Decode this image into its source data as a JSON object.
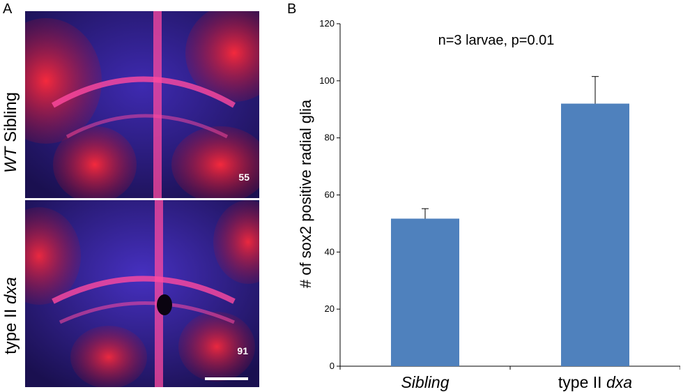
{
  "panel_a": {
    "letter": "A",
    "top": {
      "genotype_italic": "WT",
      "genotype_rest": " Sibling",
      "count": "55"
    },
    "bottom": {
      "genotype_plain": "type II ",
      "genotype_italic": "dxa",
      "count": "91"
    }
  },
  "chart_data": {
    "type": "bar",
    "panel_letter": "B",
    "categories": [
      "Sibling",
      "type II dxa"
    ],
    "category_parts": [
      {
        "plain": "",
        "italic": "Sibling"
      },
      {
        "plain": "type II ",
        "italic": "dxa"
      }
    ],
    "values": [
      51.7,
      92
    ],
    "errors": [
      3.5,
      9.5
    ],
    "title": "",
    "annotation": "n=3 larvae, p=0.01",
    "xlabel": "",
    "ylabel": "# of sox2 positive radial glia",
    "ylim": [
      0,
      120
    ],
    "yticks": [
      0,
      20,
      40,
      60,
      80,
      100,
      120
    ],
    "grid": false,
    "bar_color": "#4f81bd"
  }
}
